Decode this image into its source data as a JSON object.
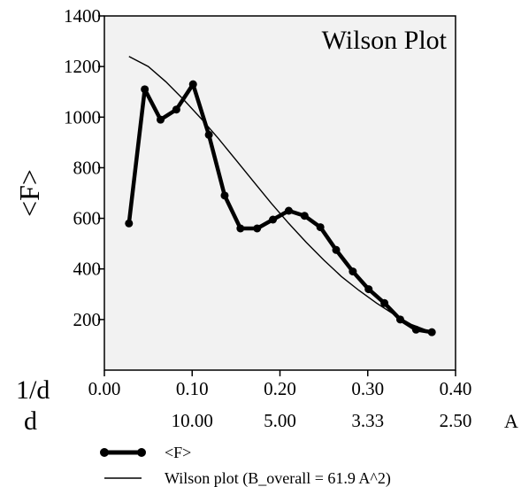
{
  "chart_data": {
    "type": "line",
    "title": "Wilson Plot",
    "ylabel": "<F>",
    "xlabel_top": "1/d",
    "xlabel_bottom": "d",
    "xunit": "A",
    "xlim": [
      0.0,
      0.4
    ],
    "ylim": [
      0,
      1400
    ],
    "x_ticks": [
      "0.00",
      "0.10",
      "0.20",
      "0.30",
      "0.40"
    ],
    "d_ticks": [
      {
        "x": 0.1,
        "label": "10.00"
      },
      {
        "x": 0.2,
        "label": "5.00"
      },
      {
        "x": 0.3,
        "label": "3.33"
      },
      {
        "x": 0.4,
        "label": "2.50"
      }
    ],
    "y_ticks": [
      "200",
      "400",
      "600",
      "800",
      "1000",
      "1200",
      "1400"
    ],
    "grid": false,
    "series": [
      {
        "name": "<F>",
        "style": "thick-line-markers",
        "x": [
          0.028,
          0.046,
          0.064,
          0.082,
          0.101,
          0.119,
          0.137,
          0.155,
          0.174,
          0.192,
          0.21,
          0.228,
          0.246,
          0.264,
          0.283,
          0.301,
          0.319,
          0.337,
          0.355,
          0.373
        ],
        "y": [
          580,
          1110,
          990,
          1030,
          1130,
          930,
          690,
          560,
          560,
          595,
          630,
          610,
          565,
          475,
          390,
          320,
          265,
          200,
          160,
          150
        ]
      },
      {
        "name": "Wilson plot (B_overall =  61.9 A^2)",
        "style": "thin-line",
        "x": [
          0.028,
          0.05,
          0.07,
          0.09,
          0.11,
          0.13,
          0.15,
          0.17,
          0.19,
          0.21,
          0.23,
          0.25,
          0.27,
          0.29,
          0.31,
          0.33,
          0.35,
          0.373
        ],
        "y": [
          1240,
          1200,
          1140,
          1070,
          995,
          915,
          830,
          745,
          660,
          580,
          505,
          435,
          370,
          315,
          265,
          220,
          180,
          150
        ]
      }
    ],
    "legend_position": "bottom"
  }
}
